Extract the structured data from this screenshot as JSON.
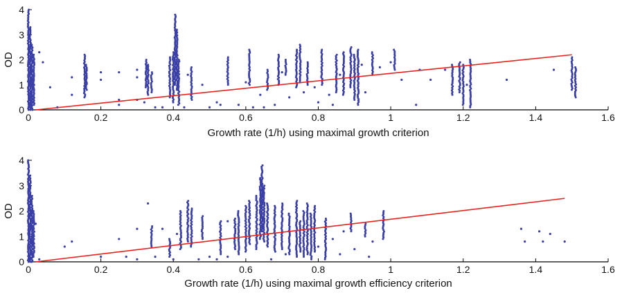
{
  "colors": {
    "points": "#3a3fa6",
    "fit": "#e8221d",
    "axis": "#000000"
  },
  "chart_data": [
    {
      "type": "scatter",
      "xlabel": "Growth rate (1/h) using maximal growth criterion",
      "ylabel": "OD",
      "xlim": [
        0,
        1.6
      ],
      "ylim": [
        0,
        4
      ],
      "xticks": [
        "0",
        "0.2",
        "0.4",
        "0.6",
        "0.8",
        "1",
        "1.2",
        "1.4",
        "1.6"
      ],
      "yticks": [
        "0",
        "1",
        "2",
        "3",
        "4"
      ],
      "grid": false,
      "fit_line": {
        "x": [
          0.02,
          1.5
        ],
        "y": [
          0.0,
          2.2
        ]
      },
      "columns": [
        {
          "x": 0.0,
          "ymin": 0.0,
          "ymax": 4.0
        },
        {
          "x": 0.005,
          "ymin": 0.0,
          "ymax": 3.3
        },
        {
          "x": 0.01,
          "ymin": 0.0,
          "ymax": 2.6
        },
        {
          "x": 0.015,
          "ymin": 0.2,
          "ymax": 2.2
        },
        {
          "x": 0.155,
          "ymin": 0.5,
          "ymax": 2.2
        },
        {
          "x": 0.16,
          "ymin": 0.8,
          "ymax": 1.8
        },
        {
          "x": 0.325,
          "ymin": 0.9,
          "ymax": 2.0
        },
        {
          "x": 0.33,
          "ymin": 0.6,
          "ymax": 1.8
        },
        {
          "x": 0.34,
          "ymin": 0.7,
          "ymax": 1.5
        },
        {
          "x": 0.39,
          "ymin": 0.5,
          "ymax": 2.1
        },
        {
          "x": 0.4,
          "ymin": 0.3,
          "ymax": 2.3
        },
        {
          "x": 0.405,
          "ymin": 1.0,
          "ymax": 3.8
        },
        {
          "x": 0.41,
          "ymin": 0.8,
          "ymax": 3.2
        },
        {
          "x": 0.415,
          "ymin": 0.2,
          "ymax": 2.0
        },
        {
          "x": 0.45,
          "ymin": 0.4,
          "ymax": 1.7
        },
        {
          "x": 0.55,
          "ymin": 1.0,
          "ymax": 2.1
        },
        {
          "x": 0.61,
          "ymin": 1.0,
          "ymax": 2.4
        },
        {
          "x": 0.66,
          "ymin": 0.8,
          "ymax": 1.6
        },
        {
          "x": 0.69,
          "ymin": 1.0,
          "ymax": 2.2
        },
        {
          "x": 0.71,
          "ymin": 1.4,
          "ymax": 2.0
        },
        {
          "x": 0.74,
          "ymin": 0.9,
          "ymax": 2.4
        },
        {
          "x": 0.75,
          "ymin": 1.1,
          "ymax": 2.6
        },
        {
          "x": 0.77,
          "ymin": 1.0,
          "ymax": 1.9
        },
        {
          "x": 0.81,
          "ymin": 1.0,
          "ymax": 2.4
        },
        {
          "x": 0.85,
          "ymin": 0.7,
          "ymax": 2.2
        },
        {
          "x": 0.87,
          "ymin": 0.6,
          "ymax": 2.3
        },
        {
          "x": 0.89,
          "ymin": 0.9,
          "ymax": 2.5
        },
        {
          "x": 0.9,
          "ymin": 0.4,
          "ymax": 2.2
        },
        {
          "x": 0.91,
          "ymin": 0.2,
          "ymax": 2.4
        },
        {
          "x": 0.95,
          "ymin": 1.4,
          "ymax": 2.3
        },
        {
          "x": 1.01,
          "ymin": 1.6,
          "ymax": 2.4
        },
        {
          "x": 1.17,
          "ymin": 0.6,
          "ymax": 1.8
        },
        {
          "x": 1.19,
          "ymin": 0.7,
          "ymax": 1.9
        },
        {
          "x": 1.2,
          "ymin": 0.2,
          "ymax": 1.8
        },
        {
          "x": 1.22,
          "ymin": 0.1,
          "ymax": 2.0
        },
        {
          "x": 1.5,
          "ymin": 0.8,
          "ymax": 2.1
        },
        {
          "x": 1.51,
          "ymin": 0.5,
          "ymax": 1.7
        }
      ],
      "points": [
        [
          0.03,
          2.3
        ],
        [
          0.04,
          1.9
        ],
        [
          0.06,
          0.9
        ],
        [
          0.08,
          0.1
        ],
        [
          0.12,
          1.3
        ],
        [
          0.12,
          0.6
        ],
        [
          0.2,
          1.5
        ],
        [
          0.2,
          1.2
        ],
        [
          0.25,
          1.5
        ],
        [
          0.25,
          0.4
        ],
        [
          0.25,
          0.2
        ],
        [
          0.3,
          1.6
        ],
        [
          0.3,
          1.3
        ],
        [
          0.3,
          0.4
        ],
        [
          0.32,
          0.3
        ],
        [
          0.35,
          0.1
        ],
        [
          0.37,
          0.1
        ],
        [
          0.43,
          0.1
        ],
        [
          0.44,
          1.4
        ],
        [
          0.48,
          1.0
        ],
        [
          0.5,
          0.1
        ],
        [
          0.52,
          0.3
        ],
        [
          0.53,
          0.2
        ],
        [
          0.58,
          0.2
        ],
        [
          0.6,
          1.1
        ],
        [
          0.62,
          0.1
        ],
        [
          0.64,
          0.6
        ],
        [
          0.65,
          0.1
        ],
        [
          0.68,
          0.2
        ],
        [
          0.7,
          1.5
        ],
        [
          0.72,
          0.5
        ],
        [
          0.76,
          0.7
        ],
        [
          0.79,
          0.9
        ],
        [
          0.8,
          0.3
        ],
        [
          0.83,
          0.6
        ],
        [
          0.84,
          0.2
        ],
        [
          0.86,
          1.4
        ],
        [
          0.92,
          1.8
        ],
        [
          0.93,
          0.7
        ],
        [
          0.97,
          1.7
        ],
        [
          1.0,
          1.9
        ],
        [
          1.03,
          1.2
        ],
        [
          1.07,
          0.2
        ],
        [
          1.08,
          1.6
        ],
        [
          1.11,
          1.2
        ],
        [
          1.15,
          1.6
        ],
        [
          1.21,
          1.0
        ],
        [
          1.32,
          1.2
        ],
        [
          1.45,
          1.6
        ]
      ]
    },
    {
      "type": "scatter",
      "xlabel": "Growth rate (1/h) using maximal growth efficiency criterion",
      "ylabel": "OD",
      "xlim": [
        0,
        1.6
      ],
      "ylim": [
        0,
        4
      ],
      "xticks": [
        "0",
        "0.2",
        "0.4",
        "0.6",
        "0.8",
        "1",
        "1.2",
        "1.4",
        "1.6"
      ],
      "yticks": [
        "0",
        "1",
        "2",
        "3",
        "4"
      ],
      "grid": false,
      "fit_line": {
        "x": [
          0.02,
          1.48
        ],
        "y": [
          0.0,
          2.5
        ]
      },
      "columns": [
        {
          "x": 0.0,
          "ymin": 0.0,
          "ymax": 4.0
        },
        {
          "x": 0.005,
          "ymin": 0.0,
          "ymax": 3.4
        },
        {
          "x": 0.01,
          "ymin": 0.0,
          "ymax": 2.6
        },
        {
          "x": 0.015,
          "ymin": 0.2,
          "ymax": 2.0
        },
        {
          "x": 0.34,
          "ymin": 0.6,
          "ymax": 1.4
        },
        {
          "x": 0.39,
          "ymin": 0.2,
          "ymax": 0.9
        },
        {
          "x": 0.42,
          "ymin": 0.5,
          "ymax": 2.0
        },
        {
          "x": 0.44,
          "ymin": 0.8,
          "ymax": 2.4
        },
        {
          "x": 0.45,
          "ymin": 0.6,
          "ymax": 2.1
        },
        {
          "x": 0.48,
          "ymin": 0.9,
          "ymax": 1.8
        },
        {
          "x": 0.53,
          "ymin": 0.3,
          "ymax": 1.6
        },
        {
          "x": 0.57,
          "ymin": 0.5,
          "ymax": 1.7
        },
        {
          "x": 0.58,
          "ymin": 0.3,
          "ymax": 2.0
        },
        {
          "x": 0.6,
          "ymin": 0.4,
          "ymax": 2.2
        },
        {
          "x": 0.61,
          "ymin": 0.7,
          "ymax": 2.4
        },
        {
          "x": 0.63,
          "ymin": 0.5,
          "ymax": 2.6
        },
        {
          "x": 0.64,
          "ymin": 0.9,
          "ymax": 3.3
        },
        {
          "x": 0.645,
          "ymin": 1.2,
          "ymax": 3.8
        },
        {
          "x": 0.65,
          "ymin": 0.8,
          "ymax": 3.0
        },
        {
          "x": 0.66,
          "ymin": 0.6,
          "ymax": 2.3
        },
        {
          "x": 0.68,
          "ymin": 0.4,
          "ymax": 2.2
        },
        {
          "x": 0.7,
          "ymin": 0.5,
          "ymax": 2.3
        },
        {
          "x": 0.72,
          "ymin": 0.3,
          "ymax": 1.9
        },
        {
          "x": 0.74,
          "ymin": 0.2,
          "ymax": 2.4
        },
        {
          "x": 0.75,
          "ymin": 0.4,
          "ymax": 1.6
        },
        {
          "x": 0.76,
          "ymin": 0.2,
          "ymax": 2.0
        },
        {
          "x": 0.77,
          "ymin": 0.3,
          "ymax": 2.3
        },
        {
          "x": 0.78,
          "ymin": 0.1,
          "ymax": 1.9
        },
        {
          "x": 0.79,
          "ymin": 0.4,
          "ymax": 2.2
        },
        {
          "x": 0.82,
          "ymin": 0.1,
          "ymax": 1.7
        },
        {
          "x": 0.89,
          "ymin": 1.2,
          "ymax": 1.9
        },
        {
          "x": 0.93,
          "ymin": 1.0,
          "ymax": 1.5
        },
        {
          "x": 0.98,
          "ymin": 0.9,
          "ymax": 2.0
        }
      ],
      "points": [
        [
          0.02,
          1.5
        ],
        [
          0.03,
          0.1
        ],
        [
          0.1,
          0.6
        ],
        [
          0.12,
          0.8
        ],
        [
          0.2,
          0.2
        ],
        [
          0.25,
          0.9
        ],
        [
          0.27,
          0.2
        ],
        [
          0.3,
          1.3
        ],
        [
          0.3,
          0.1
        ],
        [
          0.33,
          2.3
        ],
        [
          0.35,
          0.2
        ],
        [
          0.37,
          1.3
        ],
        [
          0.4,
          0.1
        ],
        [
          0.41,
          1.1
        ],
        [
          0.47,
          0.1
        ],
        [
          0.5,
          0.2
        ],
        [
          0.52,
          0.1
        ],
        [
          0.55,
          1.6
        ],
        [
          0.55,
          0.2
        ],
        [
          0.67,
          0.1
        ],
        [
          0.71,
          0.3
        ],
        [
          0.8,
          0.6
        ],
        [
          0.84,
          0.9
        ],
        [
          0.86,
          0.3
        ],
        [
          0.87,
          1.2
        ],
        [
          0.9,
          0.5
        ],
        [
          0.94,
          0.2
        ],
        [
          0.95,
          0.8
        ],
        [
          1.36,
          1.3
        ],
        [
          1.37,
          0.8
        ],
        [
          1.41,
          1.2
        ],
        [
          1.42,
          0.8
        ],
        [
          1.44,
          1.1
        ],
        [
          1.48,
          0.8
        ]
      ]
    }
  ]
}
